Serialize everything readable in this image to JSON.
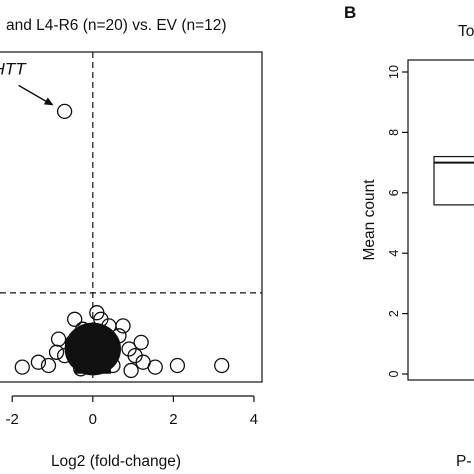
{
  "panel_a": {
    "title": "and L4-R6 (n=20) vs. EV (n=12)",
    "xlabel": "Log2 (fold-change)",
    "x_ticks": [
      "-2",
      "0",
      "2",
      "4"
    ],
    "annotation": "HTT"
  },
  "panel_b": {
    "panel_letter": "B",
    "title_fragment": "To",
    "ylabel": "Mean count",
    "y_ticks": [
      "0",
      "2",
      "4",
      "6",
      "8",
      "10"
    ],
    "xlabel_fragment": "P-"
  },
  "chart_data": [
    {
      "type": "scatter",
      "title": "and L4-R6 (n=20) vs. EV (n=12)",
      "xlabel": "Log2 (fold-change)",
      "ylabel": "",
      "xlim": [
        -2.8,
        4.2
      ],
      "ylim": [
        0,
        10
      ],
      "x_ticks": [
        -2,
        0,
        2,
        4
      ],
      "reference_lines": {
        "vertical_x": 0,
        "horizontal_y": 2.7
      },
      "highlighted_point": {
        "label": "HTT",
        "x": -0.7,
        "y": 8.2
      },
      "points": [
        {
          "x": 3.2,
          "y": 0.5
        },
        {
          "x": 2.1,
          "y": 0.5
        },
        {
          "x": 1.55,
          "y": 0.45
        },
        {
          "x": 1.25,
          "y": 0.6
        },
        {
          "x": -1.75,
          "y": 0.45
        },
        {
          "x": -1.35,
          "y": 0.6
        },
        {
          "x": -1.1,
          "y": 0.5
        },
        {
          "x": -0.9,
          "y": 0.9
        },
        {
          "x": 0.9,
          "y": 1.0
        },
        {
          "x": 1.05,
          "y": 0.8
        },
        {
          "x": 0.65,
          "y": 1.4
        },
        {
          "x": 0.4,
          "y": 1.7
        },
        {
          "x": 0.2,
          "y": 1.9
        },
        {
          "x": -0.25,
          "y": 1.6
        },
        {
          "x": -0.5,
          "y": 1.2
        },
        {
          "x": -0.7,
          "y": 0.8
        },
        {
          "x": 0.75,
          "y": 1.7
        },
        {
          "x": -0.45,
          "y": 1.9
        },
        {
          "x": 0.1,
          "y": 2.1
        },
        {
          "x": 1.2,
          "y": 1.2
        },
        {
          "x": -0.85,
          "y": 1.3
        },
        {
          "x": 0.5,
          "y": 0.5
        },
        {
          "x": -0.3,
          "y": 0.4
        },
        {
          "x": 0.95,
          "y": 0.35
        }
      ],
      "dense_cluster": {
        "x_range": [
          -0.7,
          0.7
        ],
        "y_range": [
          0.2,
          1.8
        ]
      }
    },
    {
      "type": "box",
      "ylabel": "Mean count",
      "ylim": [
        0,
        10
      ],
      "y_ticks": [
        0,
        2,
        4,
        6,
        8,
        10
      ],
      "box": {
        "q1": 5.6,
        "q3": 7.2,
        "median": 7.0
      }
    }
  ]
}
